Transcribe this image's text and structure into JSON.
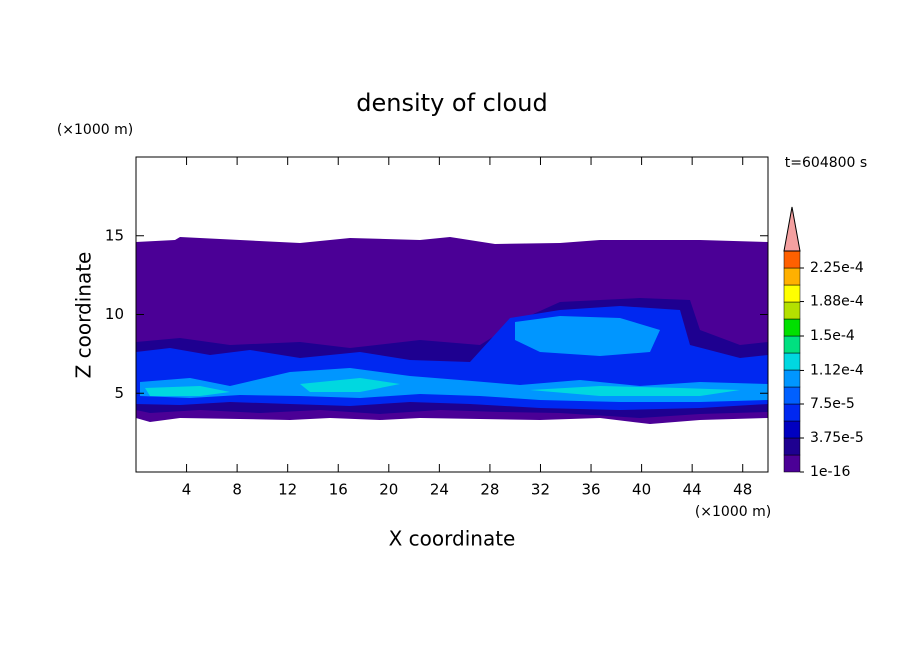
{
  "chart_data": {
    "type": "contour",
    "title": "density of cloud",
    "x_label": "X coordinate",
    "y_label": "Z coordinate",
    "x_unit": "(×1000 m)",
    "y_unit": "(×1000 m)",
    "time_label": "t=604800 s",
    "xlim": [
      0,
      50
    ],
    "xticks": [
      4,
      8,
      12,
      16,
      20,
      24,
      28,
      32,
      36,
      40,
      44,
      48
    ],
    "ylim": [
      0,
      20
    ],
    "yticks": [
      5,
      10,
      15
    ],
    "colorbar": {
      "clim": [
        1e-16,
        0.00024375
      ],
      "ticks": [
        {
          "value": 1e-16,
          "label": "1e-16"
        },
        {
          "value": 3.75e-05,
          "label": "3.75e-5"
        },
        {
          "value": 7.5e-05,
          "label": "7.5e-5"
        },
        {
          "value": 0.000112,
          "label": "1.12e-4"
        },
        {
          "value": 0.00015,
          "label": "1.5e-4"
        },
        {
          "value": 0.000188,
          "label": "1.88e-4"
        },
        {
          "value": 0.000225,
          "label": "2.25e-4"
        }
      ],
      "colors": [
        "#4b0096",
        "#1e0090",
        "#0000c0",
        "#0028f0",
        "#0060ff",
        "#0096ff",
        "#00d8e0",
        "#00e080",
        "#00e000",
        "#b4e000",
        "#ffff00",
        "#ffb000",
        "#ff6000"
      ],
      "extend_color": "#f4a0a0"
    }
  }
}
